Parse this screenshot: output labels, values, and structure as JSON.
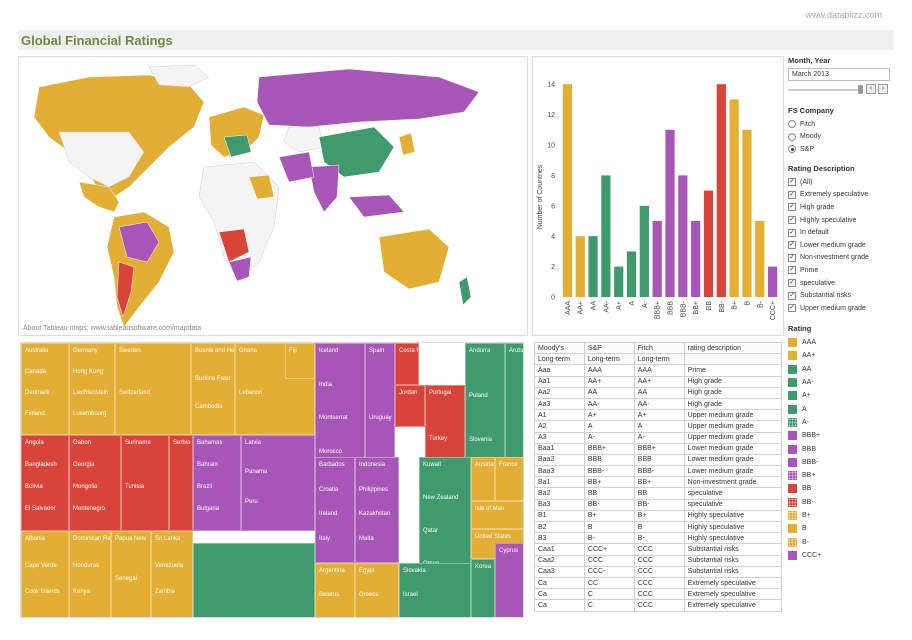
{
  "watermark": "www.datablizz.com",
  "title": "Global Financial Ratings",
  "map": {
    "credit": "About Tableau maps: www.tableausoftware.com/mapdata"
  },
  "colors": {
    "orange": "#e3ae34",
    "green": "#3f9b6e",
    "purple": "#a855b8",
    "red": "#d9443a",
    "land": "#f4f4f4"
  },
  "chart_data": {
    "type": "bar",
    "categories": [
      "AAA",
      "AA+",
      "AA",
      "AA-",
      "A+",
      "A",
      "A-",
      "BBB+",
      "BBB",
      "BBB-",
      "BB+",
      "BB",
      "BB-",
      "B+",
      "B",
      "B-",
      "CCC+"
    ],
    "values": [
      14,
      4,
      4,
      8,
      2,
      3,
      6,
      5,
      11,
      8,
      5,
      7,
      14,
      13,
      11,
      5,
      2
    ],
    "bar_colors": [
      "#e3ae34",
      "#e3ae34",
      "#3f9b6e",
      "#3f9b6e",
      "#3f9b6e",
      "#3f9b6e",
      "#3f9b6e",
      "#a855b8",
      "#a855b8",
      "#a855b8",
      "#a855b8",
      "#d9443a",
      "#d9443a",
      "#e3ae34",
      "#e3ae34",
      "#e3ae34",
      "#a855b8"
    ],
    "ylabel": "Number of Countries",
    "yticks": [
      0,
      2,
      4,
      6,
      8,
      10,
      12,
      14
    ],
    "ylim": [
      0,
      15
    ]
  },
  "treemap": {
    "cells": [
      {
        "l": [
          "Australia",
          "Canada",
          "Denmark",
          "Finland"
        ],
        "c": "#e3ae34"
      },
      {
        "l": [
          "Germany",
          "Hong Kong",
          "Liechtenstein",
          "Luxembourg"
        ],
        "c": "#e3ae34"
      },
      {
        "l": [
          "Sweden",
          "Switzerland"
        ],
        "c": "#e3ae34"
      },
      {
        "l": [
          "Brazil"
        ],
        "c": "#a855b8"
      },
      {
        "l": [
          "Bosnia and Herzegovina",
          "Burkina Faso",
          "Cambodia"
        ],
        "c": "#e3ae34"
      },
      {
        "l": [
          "Ghana",
          "Lebanon"
        ],
        "c": "#e3ae34"
      },
      {
        "l": [
          "Fiji"
        ],
        "c": "#e3ae34"
      },
      {
        "l": [
          "Iceland",
          "India",
          "Montserrat",
          "Morocco"
        ],
        "c": "#a855b8"
      },
      {
        "l": [
          "Spain",
          "Uruguay"
        ],
        "c": "#a855b8"
      },
      {
        "l": [
          "Costa Rica"
        ],
        "c": "#d9443a"
      },
      {
        "l": [
          "Jordan"
        ],
        "c": "#d9443a"
      },
      {
        "l": [
          "Portugal",
          "Turkey"
        ],
        "c": "#d9443a"
      },
      {
        "l": [
          "Andorra",
          "Poland",
          "Slovenia"
        ],
        "c": "#3f9b6e"
      },
      {
        "l": [
          "Aruba"
        ],
        "c": "#3f9b6e"
      },
      {
        "l": [
          "Angola",
          "Bangladesh",
          "Bolivia",
          "El Salvador"
        ],
        "c": "#d9443a"
      },
      {
        "l": [
          "Gabon",
          "Georgia",
          "Mongolia",
          "Montenegro"
        ],
        "c": "#d9443a"
      },
      {
        "l": [
          "Suriname",
          "Tunisia"
        ],
        "c": "#d9443a"
      },
      {
        "l": [
          "Serbia"
        ],
        "c": "#d9443a"
      },
      {
        "l": [
          "Bahamas",
          "Bahrain",
          "Brazil",
          "Bulgaria"
        ],
        "c": "#a855b8"
      },
      {
        "l": [
          "Latvia",
          "Panama",
          "Peru"
        ],
        "c": "#a855b8"
      },
      {
        "l": [
          "Barbados",
          "Croatia",
          "Ireland",
          "Italy"
        ],
        "c": "#a855b8"
      },
      {
        "l": [
          "Indonesia",
          "Philippines",
          "Kazakhstan",
          "Malta"
        ],
        "c": "#a855b8"
      },
      {
        "l": [
          "Kuwait",
          "New Zealand",
          "Qatar",
          "Oman"
        ],
        "c": "#3f9b6e"
      },
      {
        "l": [
          "Austria"
        ],
        "c": "#e3ae34"
      },
      {
        "l": [
          "France"
        ],
        "c": "#e3ae34"
      },
      {
        "l": [
          "Isle of Man"
        ],
        "c": "#e3ae34"
      },
      {
        "l": [
          "United States"
        ],
        "c": "#e3ae34"
      },
      {
        "l": [
          "Cyprus"
        ],
        "c": "#a855b8"
      },
      {
        "l": [
          "Albania",
          "Cape Verde",
          "Cook Islands"
        ],
        "c": "#e3ae34"
      },
      {
        "l": [
          "Dominican Republic",
          "Honduras",
          "Kenya"
        ],
        "c": "#e3ae34"
      },
      {
        "l": [
          "Papua New",
          "Senegal"
        ],
        "c": "#e3ae34"
      },
      {
        "l": [
          "Sri Lanka",
          "Venezuela",
          "Zambia"
        ],
        "c": "#e3ae34"
      },
      {
        "l": [],
        "c": "#3f9b6e"
      },
      {
        "l": [
          "Argentina",
          "Belarus"
        ],
        "c": "#e3ae34"
      },
      {
        "l": [
          "Egypt",
          "Greece"
        ],
        "c": "#e3ae34"
      },
      {
        "l": [
          "Slovakia",
          "Israel"
        ],
        "c": "#3f9b6e"
      },
      {
        "l": [
          "Korea"
        ],
        "c": "#3f9b6e"
      },
      {
        "l": [],
        "c": "#a855b8"
      }
    ]
  },
  "table": {
    "header": [
      "Moody's",
      "S&P",
      "Fitch",
      "rating description"
    ],
    "subheader": [
      "Long-term",
      "Long-term",
      "Long-term",
      ""
    ],
    "rows": [
      [
        "Aaa",
        "AAA",
        "AAA",
        "Prime"
      ],
      [
        "Aa1",
        "AA+",
        "AA+",
        "High grade"
      ],
      [
        "Aa2",
        "AA",
        "AA",
        "High grade"
      ],
      [
        "Aa3",
        "AA-",
        "AA-",
        "High grade"
      ],
      [
        "A1",
        "A+",
        "A+",
        "Upper medium grade"
      ],
      [
        "A2",
        "A",
        "A",
        "Upper medium grade"
      ],
      [
        "A3",
        "A-",
        "A-",
        "Upper medium grade"
      ],
      [
        "Baa1",
        "BBB+",
        "BBB+",
        "Lower medium grade"
      ],
      [
        "Baa2",
        "BBB",
        "BBB",
        "Lower medium grade"
      ],
      [
        "Baa3",
        "BBB-",
        "BBB-",
        "Lower medium grade"
      ],
      [
        "Ba1",
        "BB+",
        "BB+",
        "Non-investment grade"
      ],
      [
        "Ba2",
        "BB",
        "BB",
        "speculative"
      ],
      [
        "Ba3",
        "BB-",
        "BB-",
        "speculative"
      ],
      [
        "B1",
        "B+",
        "B+",
        "Highly speculative"
      ],
      [
        "B2",
        "B",
        "B",
        "Highly speculative"
      ],
      [
        "B3",
        "B-",
        "B-",
        "Highly speculative"
      ],
      [
        "Caa1",
        "CCC+",
        "CCC",
        "Substantial risks"
      ],
      [
        "Caa2",
        "CCC",
        "CCC",
        "Substantial risks"
      ],
      [
        "Caa3",
        "CCC-",
        "CCC",
        "Substantial risks"
      ],
      [
        "Ca",
        "CC",
        "CCC",
        "Extremely speculative"
      ],
      [
        "Ca",
        "C",
        "CCC",
        "Extremely speculative"
      ],
      [
        "Ca",
        "C",
        "CCC",
        "Extremely speculative"
      ]
    ]
  },
  "filters": {
    "month_label": "Month, Year",
    "month_value": "March 2013",
    "company_label": "FS Company",
    "companies": [
      {
        "label": "Fitch",
        "on": false
      },
      {
        "label": "Moody",
        "on": false
      },
      {
        "label": "S&P",
        "on": true
      }
    ],
    "rating_desc_label": "Rating Description",
    "rating_descs": [
      "(All)",
      "Extremely speculative",
      "High grade",
      "Highly speculative",
      "In default",
      "Lower medium grade",
      "Non-investment grade",
      "Prime",
      "speculative",
      "Substantial risks",
      "Upper medium grade"
    ],
    "rating_label": "Rating",
    "legend": [
      {
        "label": "AAA",
        "c": "#e3ae34",
        "d": false
      },
      {
        "label": "AA+",
        "c": "#e3ae34",
        "d": false
      },
      {
        "label": "AA",
        "c": "#3f9b6e",
        "d": false
      },
      {
        "label": "AA-",
        "c": "#3f9b6e",
        "d": false
      },
      {
        "label": "A+",
        "c": "#3f9b6e",
        "d": false
      },
      {
        "label": "A",
        "c": "#3f9b6e",
        "d": false
      },
      {
        "label": "A-",
        "c": "#3f9b6e",
        "d": true
      },
      {
        "label": "BBB+",
        "c": "#a855b8",
        "d": false
      },
      {
        "label": "BBB",
        "c": "#a855b8",
        "d": false
      },
      {
        "label": "BBB-",
        "c": "#a855b8",
        "d": false
      },
      {
        "label": "BB+",
        "c": "#a855b8",
        "d": true
      },
      {
        "label": "BB",
        "c": "#d9443a",
        "d": false
      },
      {
        "label": "BB-",
        "c": "#d9443a",
        "d": true
      },
      {
        "label": "B+",
        "c": "#e3ae34",
        "d": true
      },
      {
        "label": "B",
        "c": "#e3ae34",
        "d": false
      },
      {
        "label": "B-",
        "c": "#e3ae34",
        "d": true
      },
      {
        "label": "CCC+",
        "c": "#a855b8",
        "d": false
      }
    ]
  }
}
